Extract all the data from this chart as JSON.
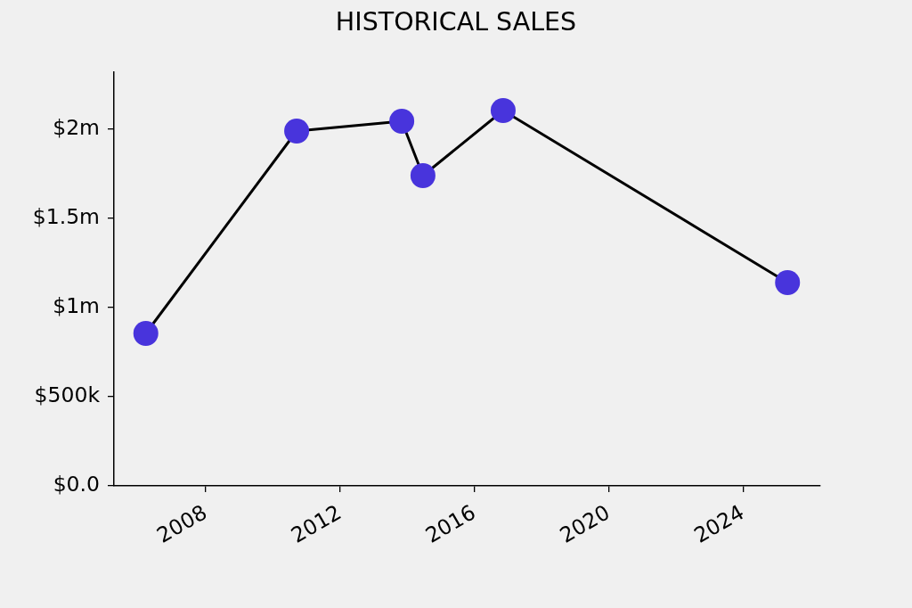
{
  "chart_data": {
    "type": "line",
    "title": "HISTORICAL SALES",
    "x": [
      "2006-03-20",
      "2010-09-16",
      "2013-11-03",
      "2014-06-21",
      "2016-11-10",
      "2025-05-01"
    ],
    "series": [
      {
        "color": "#000000",
        "colors": [
          "#4834dc",
          "#4834dc",
          "#4834dc",
          "#4834dc",
          "#4834dc",
          "#4834dc"
        ],
        "values": [
          855000,
          1990000,
          2045000,
          1740000,
          2105000,
          1140000
        ]
      }
    ],
    "xlim": [
      "2005-04-08",
      "2026-04-22"
    ],
    "xticks": [
      "2008",
      "2012",
      "2016",
      "2020",
      "2024"
    ],
    "ylim": [
      0,
      2320000
    ],
    "yticks": [
      {
        "value": 0,
        "label": "$0.0"
      },
      {
        "value": 500000,
        "label": "$500k"
      },
      {
        "value": 1000000,
        "label": "$1m"
      },
      {
        "value": 1500000,
        "label": "$1.5m"
      },
      {
        "value": 2000000,
        "label": "$2m"
      }
    ],
    "grid": false,
    "legend": false,
    "marker": "circle",
    "line_style": "solid"
  }
}
